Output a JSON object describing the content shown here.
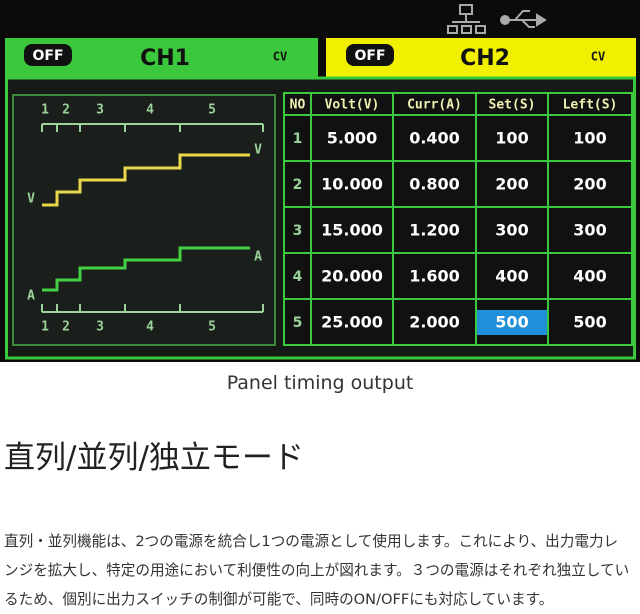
{
  "display": {
    "ch1": {
      "badge": "OFF",
      "name": "CH1",
      "mode": "CV"
    },
    "ch2": {
      "badge": "OFF",
      "name": "CH2",
      "mode": "CV"
    },
    "timing": {
      "top_labels": [
        "1",
        "2",
        "3",
        "4",
        "5"
      ],
      "bottom_labels": [
        "1",
        "2",
        "3",
        "4",
        "5"
      ],
      "v_label": "V",
      "a_label": "A"
    },
    "table": {
      "headers": [
        "NO",
        "Volt(V)",
        "Curr(A)",
        "Set(S)",
        "Left(S)"
      ],
      "rows": [
        [
          "1",
          "5.000",
          "0.400",
          "100",
          "100"
        ],
        [
          "2",
          "10.000",
          "0.800",
          "200",
          "200"
        ],
        [
          "3",
          "15.000",
          "1.200",
          "300",
          "300"
        ],
        [
          "4",
          "20.000",
          "1.600",
          "400",
          "400"
        ],
        [
          "5",
          "25.000",
          "2.000",
          "500",
          "500"
        ]
      ]
    }
  },
  "caption": "Panel timing output",
  "heading": "直列/並列/独立モード",
  "paragraph": [
    "直列・並列機能は、2つの電源を統合し1つの電源として使用します。これにより、出力電力レ",
    "ンジを拡大し、特定の用途において利便性の向上が図れます。３つの電源はそれぞれ独立してい",
    "るため、個別に出力スイッチの制御が可能で、同時のON/OFFにも対応しています。"
  ]
}
